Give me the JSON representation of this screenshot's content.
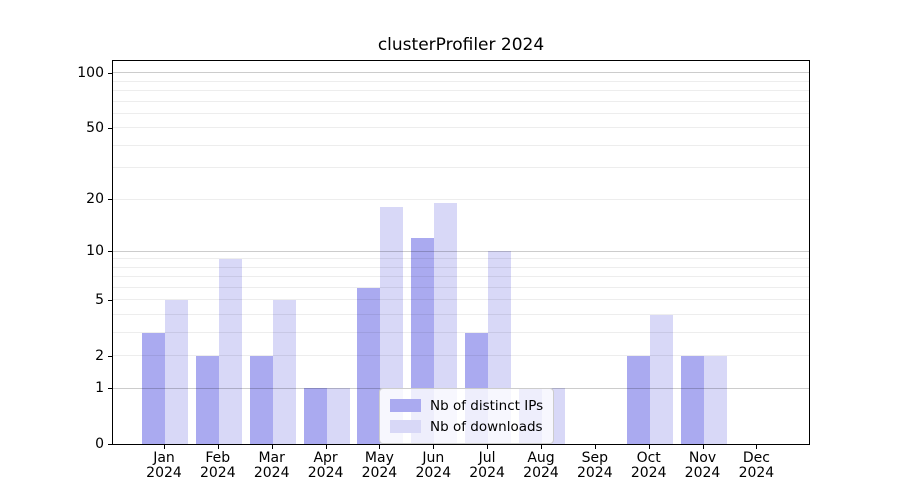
{
  "chart_data": {
    "type": "bar",
    "title": "clusterProfiler 2024",
    "categories": [
      "Jan",
      "Feb",
      "Mar",
      "Apr",
      "May",
      "Jun",
      "Jul",
      "Aug",
      "Sep",
      "Oct",
      "Nov",
      "Dec"
    ],
    "year_label": "2024",
    "series": [
      {
        "name": "Nb of distinct IPs",
        "color": "#aaaaf0",
        "values": [
          3,
          2,
          2,
          1,
          6,
          12,
          3,
          1,
          0,
          2,
          2,
          0
        ]
      },
      {
        "name": "Nb of downloads",
        "color": "#d8d8f7",
        "values": [
          5,
          9,
          5,
          1,
          18,
          19,
          10,
          1,
          0,
          4,
          2,
          0
        ]
      }
    ],
    "yscale": "log1p",
    "ylim": [
      0,
      116
    ],
    "yticks": [
      0,
      1,
      2,
      5,
      10,
      20,
      50,
      100
    ],
    "major_gridlines": [
      1,
      10,
      100
    ],
    "minor_gridlines": [
      2,
      3,
      4,
      5,
      6,
      7,
      8,
      9,
      20,
      30,
      40,
      50,
      60,
      70,
      80,
      90
    ],
    "grid": true,
    "legend_position": "lower-center"
  }
}
